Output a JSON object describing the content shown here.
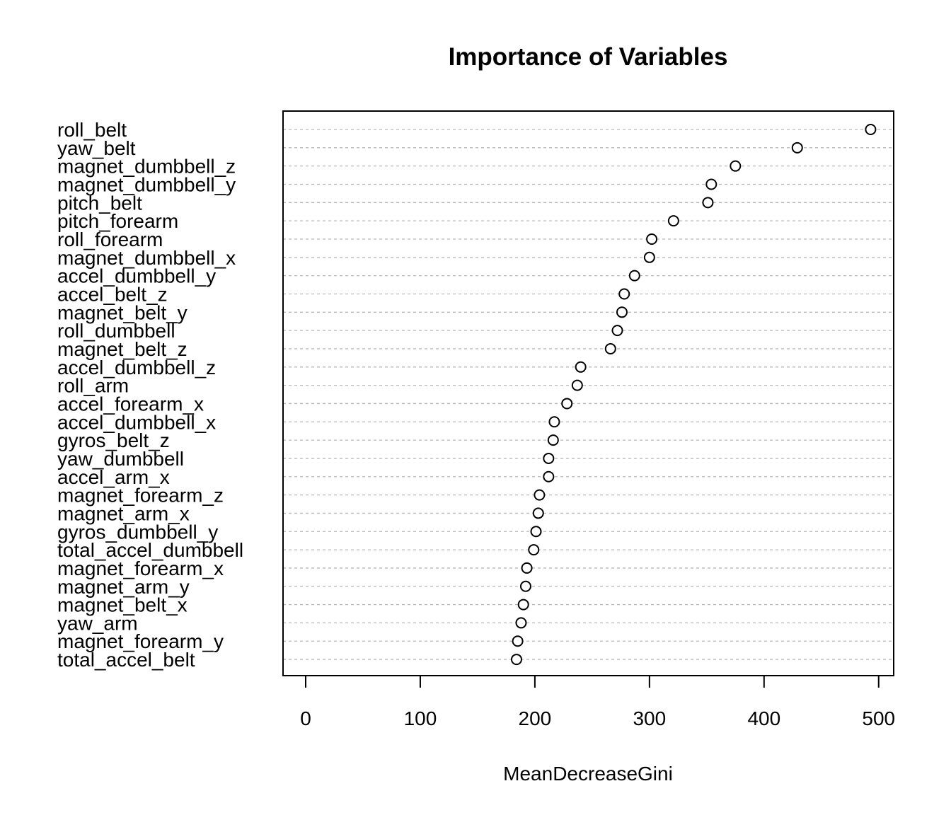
{
  "chart_data": {
    "type": "scatter",
    "title": "Importance of Variables",
    "xlabel": "MeanDecreaseGini",
    "ylabel": "",
    "xlim": [
      -20,
      512
    ],
    "xticks": [
      0,
      100,
      200,
      300,
      400,
      500
    ],
    "grid": "dashed horizontal guides per category",
    "categories": [
      "roll_belt",
      "yaw_belt",
      "magnet_dumbbell_z",
      "magnet_dumbbell_y",
      "pitch_belt",
      "pitch_forearm",
      "roll_forearm",
      "magnet_dumbbell_x",
      "accel_dumbbell_y",
      "accel_belt_z",
      "magnet_belt_y",
      "roll_dumbbell",
      "magnet_belt_z",
      "accel_dumbbell_z",
      "roll_arm",
      "accel_forearm_x",
      "accel_dumbbell_x",
      "gyros_belt_z",
      "yaw_dumbbell",
      "accel_arm_x",
      "magnet_forearm_z",
      "magnet_arm_x",
      "gyros_dumbbell_y",
      "total_accel_dumbbell",
      "magnet_forearm_x",
      "magnet_arm_y",
      "magnet_belt_x",
      "yaw_arm",
      "magnet_forearm_y",
      "total_accel_belt"
    ],
    "values": [
      493,
      429,
      375,
      354,
      351,
      321,
      302,
      300,
      287,
      278,
      276,
      272,
      266,
      240,
      237,
      228,
      217,
      216,
      212,
      212,
      204,
      203,
      201,
      199,
      193,
      192,
      190,
      188,
      185,
      184
    ]
  }
}
